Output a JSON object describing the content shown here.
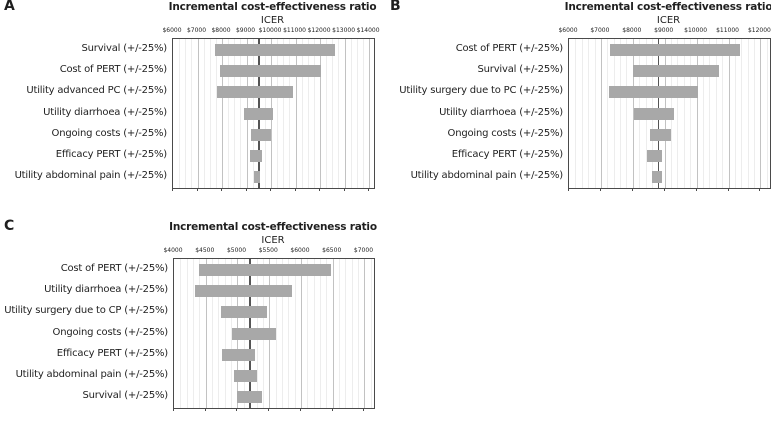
{
  "colors": {
    "bar": "#a8a8a8",
    "baseline": "#555555",
    "grid_minor": "#ededed",
    "grid_major": "#c2c2c2",
    "plot_border": "#4a4a4a",
    "text": "#1f1f1f"
  },
  "chart_data": [
    {
      "id": "A",
      "type": "bar",
      "subtype": "tornado",
      "panel_label": "A",
      "title": "Incremental cost-effectiveness ratio",
      "subtitle": "ICER",
      "orientation": "horizontal",
      "grid": true,
      "x_axis": {
        "min": 6000,
        "max": 14200,
        "minor_step": 250,
        "tick_values": [
          6000,
          7000,
          8000,
          9000,
          10000,
          11000,
          12000,
          13000,
          14000
        ],
        "tick_labels": [
          "$6000",
          "$7000",
          "$8000",
          "$9000",
          "$10000",
          "$11000",
          "$12000",
          "$13000",
          "$14000"
        ]
      },
      "baseline": 9500,
      "rows": [
        {
          "label": "Survival (+/-25%)",
          "low": 7700,
          "high": 12600
        },
        {
          "label": "Cost of PERT (+/-25%)",
          "low": 7900,
          "high": 12050
        },
        {
          "label": "Utility advanced PC (+/-25%)",
          "low": 7800,
          "high": 10900
        },
        {
          "label": "Utility diarrhoea (+/-25%)",
          "low": 8900,
          "high": 10100
        },
        {
          "label": "Ongoing costs (+/-25%)",
          "low": 9200,
          "high": 10000
        },
        {
          "label": "Efficacy PERT (+/-25%)",
          "low": 9150,
          "high": 9650
        },
        {
          "label": "Utility abdominal pain (+/-25%)",
          "low": 9300,
          "high": 9550
        }
      ]
    },
    {
      "id": "B",
      "type": "bar",
      "subtype": "tornado",
      "panel_label": "B",
      "title": "Incremental cost-effectiveness ratio",
      "subtitle": "ICER",
      "orientation": "horizontal",
      "grid": true,
      "x_axis": {
        "min": 6000,
        "max": 12300,
        "minor_step": 200,
        "tick_values": [
          6000,
          7000,
          8000,
          9000,
          10000,
          11000,
          12000
        ],
        "tick_labels": [
          "$6000",
          "$7000",
          "$8000",
          "$9000",
          "$10000",
          "$11000",
          "$12000"
        ]
      },
      "baseline": 8800,
      "rows": [
        {
          "label": "Cost of PERT (+/-25%)",
          "low": 7300,
          "high": 11350
        },
        {
          "label": "Survival (+/-25%)",
          "low": 8000,
          "high": 10700
        },
        {
          "label": "Utility surgery due to PC (+/-25%)",
          "low": 7250,
          "high": 10050
        },
        {
          "label": "Utility diarrhoea (+/-25%)",
          "low": 8050,
          "high": 9300
        },
        {
          "label": "Ongoing costs (+/-25%)",
          "low": 8550,
          "high": 9200
        },
        {
          "label": "Efficacy PERT (+/-25%)",
          "low": 8450,
          "high": 8900
        },
        {
          "label": "Utility abdominal pain (+/-25%)",
          "low": 8600,
          "high": 8930
        }
      ]
    },
    {
      "id": "C",
      "type": "bar",
      "subtype": "tornado",
      "panel_label": "C",
      "title": "Incremental cost-effectiveness ratio",
      "subtitle": "ICER",
      "orientation": "horizontal",
      "grid": true,
      "x_axis": {
        "min": 4000,
        "max": 7150,
        "minor_step": 100,
        "tick_values": [
          4000,
          4500,
          5000,
          5500,
          6000,
          6500,
          7000
        ],
        "tick_labels": [
          "$4000",
          "$4500",
          "$5000",
          "$5500",
          "$6000",
          "$6500",
          "$7000"
        ]
      },
      "baseline": 5200,
      "rows": [
        {
          "label": "Cost of PERT (+/-25%)",
          "low": 4400,
          "high": 6480
        },
        {
          "label": "Utility diarrhoea (+/-25%)",
          "low": 4330,
          "high": 5860
        },
        {
          "label": "Utility surgery due to CP (+/-25%)",
          "low": 4740,
          "high": 5470
        },
        {
          "label": "Ongoing costs (+/-25%)",
          "low": 4920,
          "high": 5600
        },
        {
          "label": "Efficacy PERT (+/-25%)",
          "low": 4760,
          "high": 5270
        },
        {
          "label": "Utility abdominal pain (+/-25%)",
          "low": 4950,
          "high": 5310
        },
        {
          "label": "Survival (+/-25%)",
          "low": 4990,
          "high": 5380
        }
      ]
    }
  ]
}
